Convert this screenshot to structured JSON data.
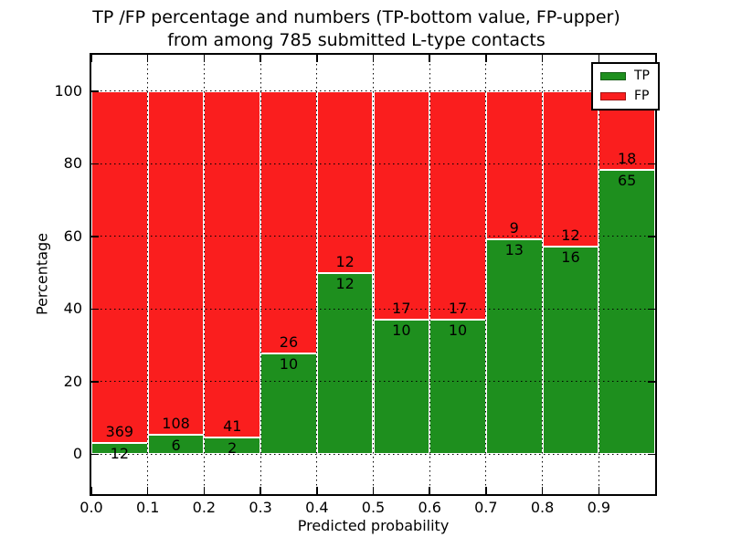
{
  "chart_data": {
    "type": "bar",
    "stacked": true,
    "orientation": "vertical",
    "title": "TP /FP percentage and numbers (TP-bottom value, FP-upper) from among 785 submitted L-type contacts",
    "title_lines": [
      "TP /FP percentage and numbers (TP-bottom value, FP-upper)",
      "from among 785 submitted L-type contacts"
    ],
    "xlabel": "Predicted probability",
    "ylabel": "Percentage",
    "total_contacts_in_title": 785,
    "xlim": [
      0.0,
      1.0
    ],
    "ylim": [
      -11,
      110
    ],
    "bin_width": 0.1,
    "bin_starts": [
      0.0,
      0.1,
      0.2,
      0.3,
      0.4,
      0.5,
      0.6,
      0.7,
      0.8,
      0.9
    ],
    "xtick_values": [
      0.0,
      0.1,
      0.2,
      0.3,
      0.4,
      0.5,
      0.6,
      0.7,
      0.8,
      0.9
    ],
    "xtick_labels": [
      "0.0",
      "0.1",
      "0.2",
      "0.3",
      "0.4",
      "0.5",
      "0.6",
      "0.7",
      "0.8",
      "0.9"
    ],
    "ytick_values": [
      0,
      20,
      40,
      60,
      80,
      100
    ],
    "ytick_labels": [
      "0",
      "20",
      "40",
      "60",
      "80",
      "100"
    ],
    "grid": true,
    "grid_style": "dotted",
    "series": [
      {
        "name": "TP",
        "color": "#1e8f1e",
        "counts": [
          12,
          6,
          2,
          10,
          12,
          10,
          10,
          13,
          16,
          65
        ]
      },
      {
        "name": "FP",
        "color": "#fa1e1e",
        "counts": [
          369,
          108,
          41,
          26,
          12,
          17,
          17,
          9,
          12,
          18
        ]
      }
    ],
    "tp_percent_heights": [
      3.1,
      5.3,
      4.7,
      27.8,
      50.0,
      37.0,
      37.0,
      59.1,
      57.1,
      78.3
    ],
    "bars_total_height_percent": 100,
    "legend": {
      "position": "upper right",
      "entries": [
        {
          "label": "TP",
          "color": "#1e8f1e"
        },
        {
          "label": "FP",
          "color": "#fa1e1e"
        }
      ]
    }
  },
  "colors": {
    "background": "#ffffff",
    "axis": "#000000",
    "grid": "#000000",
    "bar_edge": "#ffffff",
    "text": "#000000"
  }
}
